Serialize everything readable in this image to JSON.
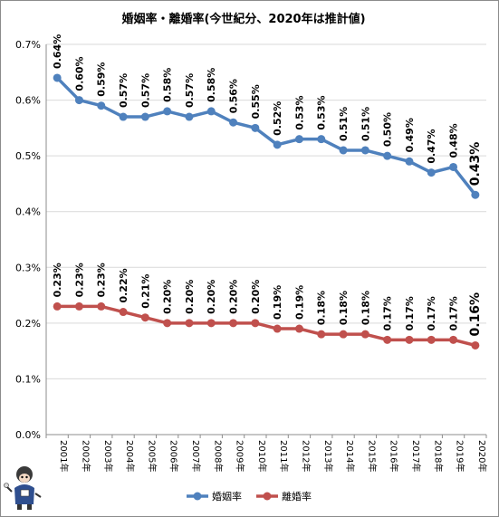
{
  "chart_data": {
    "type": "line",
    "title": "婚姻率・離婚率(今世紀分、2020年は推計値)",
    "categories": [
      "2001年",
      "2002年",
      "2003年",
      "2004年",
      "2005年",
      "2006年",
      "2007年",
      "2008年",
      "2009年",
      "2010年",
      "2011年",
      "2012年",
      "2013年",
      "2014年",
      "2015年",
      "2016年",
      "2017年",
      "2018年",
      "2019年",
      "2020年"
    ],
    "y_ticks": [
      "0.0%",
      "0.1%",
      "0.2%",
      "0.3%",
      "0.4%",
      "0.5%",
      "0.6%",
      "0.7%"
    ],
    "ylim": [
      0,
      0.7
    ],
    "grid": true,
    "legend_position": "bottom",
    "series": [
      {
        "name": "婚姻率",
        "color": "#4f81bd",
        "values": [
          0.64,
          0.6,
          0.59,
          0.57,
          0.57,
          0.58,
          0.57,
          0.58,
          0.56,
          0.55,
          0.52,
          0.53,
          0.53,
          0.51,
          0.51,
          0.5,
          0.49,
          0.47,
          0.48,
          0.43
        ],
        "labels": [
          "0.64%",
          "0.60%",
          "0.59%",
          "0.57%",
          "0.57%",
          "0.58%",
          "0.57%",
          "0.58%",
          "0.56%",
          "0.55%",
          "0.52%",
          "0.53%",
          "0.53%",
          "0.51%",
          "0.51%",
          "0.50%",
          "0.49%",
          "0.47%",
          "0.48%",
          "0.43%"
        ]
      },
      {
        "name": "離婚率",
        "color": "#c0504d",
        "values": [
          0.23,
          0.23,
          0.23,
          0.22,
          0.21,
          0.2,
          0.2,
          0.2,
          0.2,
          0.2,
          0.19,
          0.19,
          0.18,
          0.18,
          0.18,
          0.17,
          0.17,
          0.17,
          0.17,
          0.16
        ],
        "labels": [
          "0.23%",
          "0.23%",
          "0.23%",
          "0.22%",
          "0.21%",
          "0.20%",
          "0.20%",
          "0.20%",
          "0.20%",
          "0.20%",
          "0.19%",
          "0.19%",
          "0.18%",
          "0.18%",
          "0.18%",
          "0.17%",
          "0.17%",
          "0.17%",
          "0.17%",
          "0.16%"
        ]
      }
    ]
  },
  "mascot": {
    "icon": "mascot-character-icon"
  }
}
